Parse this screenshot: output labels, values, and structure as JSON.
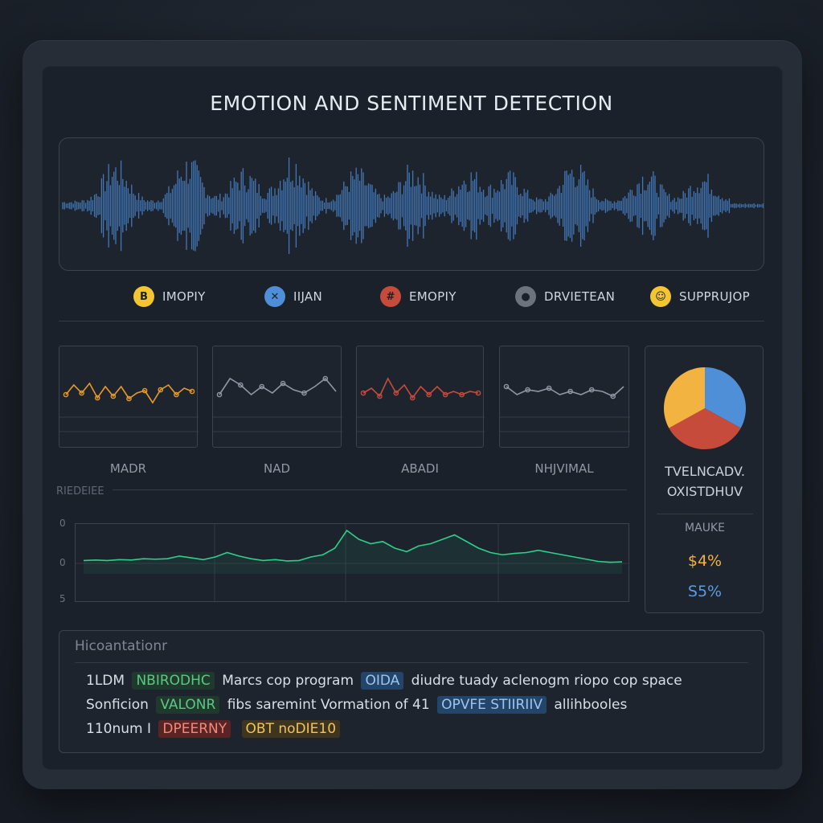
{
  "title": "EMOTION AND SENTIMENT DETECTION",
  "colors": {
    "yellow": "#f2c531",
    "blue": "#4e8fd8",
    "red": "#c64b3b",
    "gray": "#6d737c",
    "orange": "#e79a2b",
    "green": "#2dd08a"
  },
  "legend": [
    {
      "label": "IMOPIY",
      "glyph": "B",
      "color": "#f2c531",
      "icon": "b-icon"
    },
    {
      "label": "IIJAN",
      "glyph": "✕",
      "color": "#4e8fd8",
      "icon": "x-icon"
    },
    {
      "label": "EMOPIY",
      "glyph": "#",
      "color": "#c64b3b",
      "icon": "hash-icon"
    },
    {
      "label": "DRVIETEAN",
      "glyph": "●",
      "color": "#6d737c",
      "icon": "circle-icon"
    },
    {
      "label": "SUPPRUJOP",
      "glyph": "☺",
      "color": "#f2c531",
      "icon": "person-icon"
    }
  ],
  "mini_charts": [
    {
      "label": "MADR",
      "color": "#e79a2b",
      "values": [
        40,
        28,
        38,
        26,
        44,
        30,
        42,
        30,
        45,
        38,
        35,
        50,
        34,
        28,
        40,
        32,
        36
      ]
    },
    {
      "label": "NAD",
      "color": "#8e97a3",
      "values": [
        40,
        20,
        28,
        40,
        30,
        38,
        26,
        34,
        38,
        30,
        20,
        36
      ]
    },
    {
      "label": "ABADI",
      "color": "#c64b3b",
      "values": [
        38,
        32,
        42,
        20,
        38,
        28,
        44,
        30,
        40,
        30,
        40,
        36,
        40,
        36,
        38
      ]
    },
    {
      "label": "NHJVIMAL",
      "color": "#8e97a3",
      "values": [
        30,
        40,
        34,
        36,
        32,
        40,
        36,
        40,
        34,
        36,
        42,
        30
      ]
    }
  ],
  "pie": {
    "slices": [
      {
        "value": 33,
        "color": "#4e8fd8"
      },
      {
        "value": 34,
        "color": "#c64b3b"
      },
      {
        "value": 33,
        "color": "#f2b340"
      }
    ]
  },
  "side": {
    "line1": "TVELNCADV.",
    "line2": "OXISTDHUV",
    "label": "MAUKE",
    "value1": "$4%",
    "value2": "S5%"
  },
  "trend": {
    "title": "RIEDEIEE",
    "ticks": [
      "0",
      "0",
      "5"
    ],
    "values": [
      12,
      13,
      12,
      14,
      13,
      16,
      15,
      16,
      22,
      18,
      14,
      20,
      30,
      22,
      16,
      12,
      14,
      11,
      12,
      20,
      25,
      40,
      80,
      60,
      50,
      55,
      40,
      32,
      45,
      50,
      60,
      70,
      55,
      40,
      30,
      25,
      28,
      30,
      35,
      30,
      25,
      20,
      15,
      10,
      8,
      9
    ]
  },
  "recommendations": {
    "title": "Hicoantationr",
    "lines": [
      [
        {
          "text": "1LDM"
        },
        {
          "text": "NBIRODHC",
          "tag": "green"
        },
        {
          "text": "Marcs cop program"
        },
        {
          "text": "OIDA",
          "tag": "blue"
        },
        {
          "text": "diudre tuady aclenogm riopo cop space"
        }
      ],
      [
        {
          "text": "Sonficion"
        },
        {
          "text": "VALONR",
          "tag": "green"
        },
        {
          "text": "fibs saremint Vormation of 41"
        },
        {
          "text": "OPVFE STIIRIIV",
          "tag": "blue"
        },
        {
          "text": "allihbooles"
        }
      ],
      [
        {
          "text": "110num I"
        },
        {
          "text": "DPEERNY",
          "tag": "red"
        },
        {
          "text": "OBT noDIE10",
          "tag": "amber"
        }
      ]
    ]
  }
}
